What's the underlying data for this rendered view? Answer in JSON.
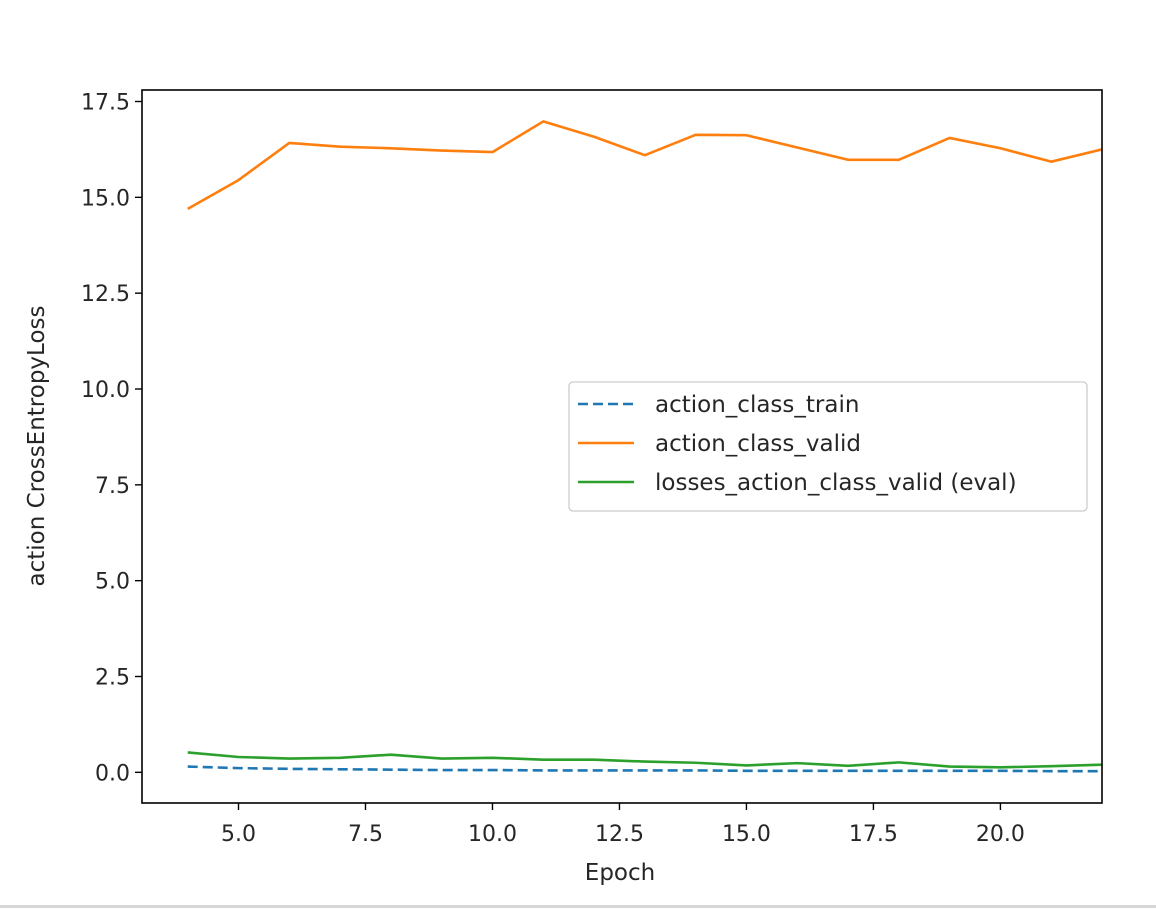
{
  "chart_data": {
    "type": "line",
    "title": "",
    "xlabel": "Epoch",
    "ylabel": "action CrossEntropyLoss",
    "xlim": [
      3.1,
      22.0
    ],
    "ylim": [
      -0.8,
      17.8
    ],
    "xticks": [
      5.0,
      7.5,
      10.0,
      12.5,
      15.0,
      17.5,
      20.0
    ],
    "xtick_labels": [
      "5.0",
      "7.5",
      "10.0",
      "12.5",
      "15.0",
      "17.5",
      "20.0"
    ],
    "yticks": [
      0.0,
      2.5,
      5.0,
      7.5,
      10.0,
      12.5,
      15.0,
      17.5
    ],
    "ytick_labels": [
      "0.0",
      "2.5",
      "5.0",
      "7.5",
      "10.0",
      "12.5",
      "15.0",
      "17.5"
    ],
    "grid": false,
    "legend_position": "center-right",
    "x": [
      4,
      5,
      6,
      7,
      8,
      9,
      10,
      11,
      12,
      13,
      14,
      15,
      16,
      17,
      18,
      19,
      20,
      21,
      22
    ],
    "series": [
      {
        "name": "action_class_train",
        "color": "#1f77b4",
        "style": "dashed",
        "values": [
          0.15,
          0.11,
          0.09,
          0.08,
          0.07,
          0.06,
          0.06,
          0.05,
          0.05,
          0.05,
          0.05,
          0.04,
          0.04,
          0.04,
          0.04,
          0.04,
          0.04,
          0.03,
          0.03
        ]
      },
      {
        "name": "action_class_valid",
        "color": "#ff7f0e",
        "style": "solid",
        "values": [
          14.7,
          15.45,
          16.42,
          16.32,
          16.28,
          16.22,
          16.18,
          16.98,
          16.58,
          16.1,
          16.63,
          16.62,
          16.3,
          15.98,
          15.98,
          16.55,
          16.28,
          15.93,
          16.25
        ]
      },
      {
        "name": "losses_action_class_valid (eval)",
        "color": "#2ca02c",
        "style": "solid",
        "values": [
          0.52,
          0.4,
          0.36,
          0.38,
          0.46,
          0.36,
          0.38,
          0.33,
          0.33,
          0.28,
          0.25,
          0.18,
          0.24,
          0.17,
          0.26,
          0.15,
          0.13,
          0.16,
          0.2
        ]
      }
    ]
  }
}
